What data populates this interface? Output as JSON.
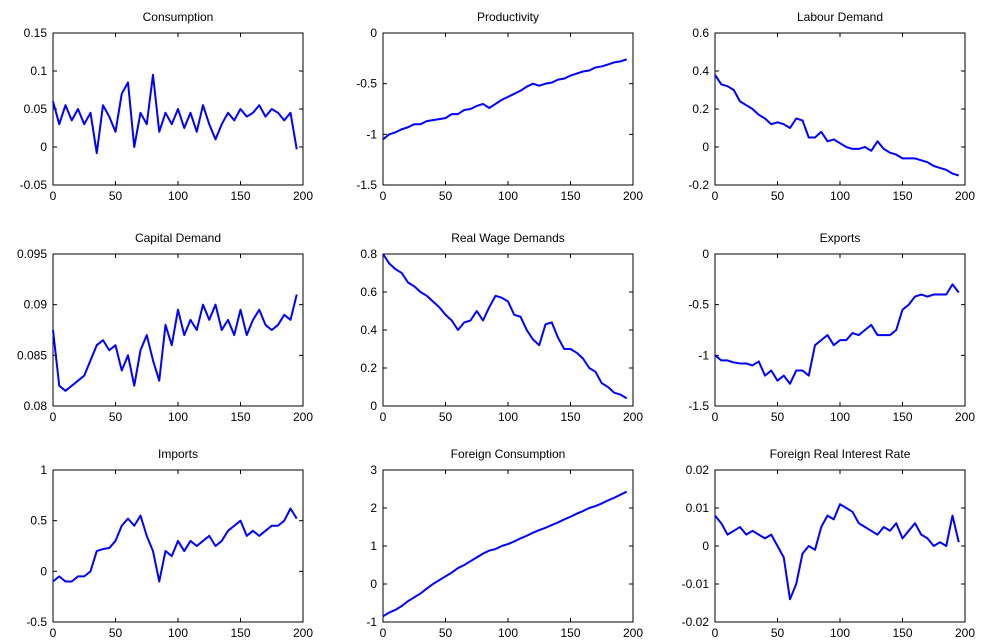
{
  "chart_data": [
    {
      "type": "line",
      "title": "Consumption",
      "color": "#0000ff",
      "x": [
        0,
        5,
        10,
        15,
        20,
        25,
        30,
        35,
        40,
        45,
        50,
        55,
        60,
        65,
        70,
        75,
        80,
        85,
        90,
        95,
        100,
        105,
        110,
        115,
        120,
        125,
        130,
        135,
        140,
        145,
        150,
        155,
        160,
        165,
        170,
        175,
        180,
        185,
        190,
        195
      ],
      "values": [
        0.06,
        0.03,
        0.055,
        0.035,
        0.05,
        0.03,
        0.045,
        -0.008,
        0.055,
        0.04,
        0.02,
        0.07,
        0.085,
        0.0,
        0.045,
        0.03,
        0.095,
        0.02,
        0.045,
        0.03,
        0.05,
        0.025,
        0.045,
        0.02,
        0.055,
        0.03,
        0.01,
        0.03,
        0.045,
        0.035,
        0.05,
        0.04,
        0.045,
        0.055,
        0.04,
        0.05,
        0.045,
        0.035,
        0.045,
        -0.003
      ],
      "xlim": [
        0,
        200
      ],
      "xticks": [
        0,
        50,
        100,
        150,
        200
      ],
      "ylim": [
        -0.05,
        0.15
      ],
      "yticks": [
        -0.05,
        0,
        0.05,
        0.1,
        0.15
      ]
    },
    {
      "type": "line",
      "title": "Productivity",
      "color": "#0000ff",
      "x": [
        0,
        5,
        10,
        15,
        20,
        25,
        30,
        35,
        40,
        45,
        50,
        55,
        60,
        65,
        70,
        75,
        80,
        85,
        90,
        95,
        100,
        105,
        110,
        115,
        120,
        125,
        130,
        135,
        140,
        145,
        150,
        155,
        160,
        165,
        170,
        175,
        180,
        185,
        190,
        195
      ],
      "values": [
        -1.05,
        -1.0,
        -0.98,
        -0.95,
        -0.93,
        -0.9,
        -0.9,
        -0.87,
        -0.86,
        -0.85,
        -0.84,
        -0.8,
        -0.8,
        -0.76,
        -0.75,
        -0.72,
        -0.7,
        -0.74,
        -0.7,
        -0.66,
        -0.63,
        -0.6,
        -0.57,
        -0.53,
        -0.5,
        -0.52,
        -0.5,
        -0.49,
        -0.46,
        -0.45,
        -0.42,
        -0.4,
        -0.38,
        -0.37,
        -0.34,
        -0.33,
        -0.31,
        -0.29,
        -0.28,
        -0.26
      ],
      "xlim": [
        0,
        200
      ],
      "xticks": [
        0,
        50,
        100,
        150,
        200
      ],
      "ylim": [
        -1.5,
        0
      ],
      "yticks": [
        -1.5,
        -1,
        -0.5,
        0
      ]
    },
    {
      "type": "line",
      "title": "Labour Demand",
      "color": "#0000ff",
      "x": [
        0,
        5,
        10,
        15,
        20,
        25,
        30,
        35,
        40,
        45,
        50,
        55,
        60,
        65,
        70,
        75,
        80,
        85,
        90,
        95,
        100,
        105,
        110,
        115,
        120,
        125,
        130,
        135,
        140,
        145,
        150,
        155,
        160,
        165,
        170,
        175,
        180,
        185,
        190,
        195
      ],
      "values": [
        0.38,
        0.33,
        0.32,
        0.3,
        0.24,
        0.22,
        0.2,
        0.17,
        0.15,
        0.12,
        0.13,
        0.12,
        0.1,
        0.15,
        0.14,
        0.05,
        0.05,
        0.08,
        0.03,
        0.04,
        0.02,
        0.0,
        -0.01,
        -0.01,
        0.0,
        -0.02,
        0.03,
        -0.01,
        -0.03,
        -0.04,
        -0.06,
        -0.06,
        -0.06,
        -0.07,
        -0.08,
        -0.1,
        -0.11,
        -0.12,
        -0.14,
        -0.15
      ],
      "xlim": [
        0,
        200
      ],
      "xticks": [
        0,
        50,
        100,
        150,
        200
      ],
      "ylim": [
        -0.2,
        0.6
      ],
      "yticks": [
        -0.2,
        0,
        0.2,
        0.4,
        0.6
      ]
    },
    {
      "type": "line",
      "title": "Capital Demand",
      "color": "#0000ff",
      "x": [
        0,
        5,
        10,
        15,
        20,
        25,
        30,
        35,
        40,
        45,
        50,
        55,
        60,
        65,
        70,
        75,
        80,
        85,
        90,
        95,
        100,
        105,
        110,
        115,
        120,
        125,
        130,
        135,
        140,
        145,
        150,
        155,
        160,
        165,
        170,
        175,
        180,
        185,
        190,
        195
      ],
      "values": [
        0.0875,
        0.082,
        0.0815,
        0.082,
        0.0825,
        0.083,
        0.0845,
        0.086,
        0.0865,
        0.0855,
        0.086,
        0.0835,
        0.085,
        0.082,
        0.0855,
        0.087,
        0.0845,
        0.0825,
        0.088,
        0.086,
        0.0895,
        0.087,
        0.0885,
        0.0875,
        0.09,
        0.0885,
        0.09,
        0.0875,
        0.0885,
        0.087,
        0.0895,
        0.087,
        0.0885,
        0.0895,
        0.088,
        0.0875,
        0.088,
        0.089,
        0.0885,
        0.091
      ],
      "xlim": [
        0,
        200
      ],
      "xticks": [
        0,
        50,
        100,
        150,
        200
      ],
      "ylim": [
        0.08,
        0.095
      ],
      "yticks": [
        0.08,
        0.085,
        0.09,
        0.095
      ]
    },
    {
      "type": "line",
      "title": "Real Wage Demands",
      "color": "#0000ff",
      "x": [
        0,
        5,
        10,
        15,
        20,
        25,
        30,
        35,
        40,
        45,
        50,
        55,
        60,
        65,
        70,
        75,
        80,
        85,
        90,
        95,
        100,
        105,
        110,
        115,
        120,
        125,
        130,
        135,
        140,
        145,
        150,
        155,
        160,
        165,
        170,
        175,
        180,
        185,
        190,
        195
      ],
      "values": [
        0.8,
        0.75,
        0.72,
        0.7,
        0.65,
        0.63,
        0.6,
        0.58,
        0.55,
        0.52,
        0.48,
        0.45,
        0.4,
        0.44,
        0.45,
        0.5,
        0.45,
        0.52,
        0.58,
        0.57,
        0.55,
        0.48,
        0.47,
        0.4,
        0.35,
        0.32,
        0.43,
        0.44,
        0.36,
        0.3,
        0.3,
        0.28,
        0.25,
        0.2,
        0.18,
        0.12,
        0.1,
        0.07,
        0.06,
        0.04
      ],
      "xlim": [
        0,
        200
      ],
      "xticks": [
        0,
        50,
        100,
        150,
        200
      ],
      "ylim": [
        0,
        0.8
      ],
      "yticks": [
        0,
        0.2,
        0.4,
        0.6,
        0.8
      ]
    },
    {
      "type": "line",
      "title": "Exports",
      "color": "#0000ff",
      "x": [
        0,
        5,
        10,
        15,
        20,
        25,
        30,
        35,
        40,
        45,
        50,
        55,
        60,
        65,
        70,
        75,
        80,
        85,
        90,
        95,
        100,
        105,
        110,
        115,
        120,
        125,
        130,
        135,
        140,
        145,
        150,
        155,
        160,
        165,
        170,
        175,
        180,
        185,
        190,
        195
      ],
      "values": [
        -1.0,
        -1.05,
        -1.05,
        -1.07,
        -1.08,
        -1.08,
        -1.1,
        -1.06,
        -1.2,
        -1.15,
        -1.25,
        -1.2,
        -1.28,
        -1.15,
        -1.15,
        -1.2,
        -0.9,
        -0.85,
        -0.8,
        -0.9,
        -0.85,
        -0.85,
        -0.78,
        -0.8,
        -0.75,
        -0.7,
        -0.8,
        -0.8,
        -0.8,
        -0.75,
        -0.55,
        -0.5,
        -0.42,
        -0.4,
        -0.42,
        -0.4,
        -0.4,
        -0.4,
        -0.3,
        -0.38
      ],
      "xlim": [
        0,
        200
      ],
      "xticks": [
        0,
        50,
        100,
        150,
        200
      ],
      "ylim": [
        -1.5,
        0
      ],
      "yticks": [
        -1.5,
        -1,
        -0.5,
        0
      ]
    },
    {
      "type": "line",
      "title": "Imports",
      "color": "#0000ff",
      "x": [
        0,
        5,
        10,
        15,
        20,
        25,
        30,
        35,
        40,
        45,
        50,
        55,
        60,
        65,
        70,
        75,
        80,
        85,
        90,
        95,
        100,
        105,
        110,
        115,
        120,
        125,
        130,
        135,
        140,
        145,
        150,
        155,
        160,
        165,
        170,
        175,
        180,
        185,
        190,
        195
      ],
      "values": [
        -0.1,
        -0.05,
        -0.1,
        -0.1,
        -0.05,
        -0.05,
        0.0,
        0.2,
        0.22,
        0.23,
        0.3,
        0.45,
        0.52,
        0.45,
        0.55,
        0.35,
        0.2,
        -0.1,
        0.2,
        0.15,
        0.3,
        0.2,
        0.3,
        0.25,
        0.3,
        0.35,
        0.25,
        0.3,
        0.4,
        0.45,
        0.5,
        0.35,
        0.4,
        0.35,
        0.4,
        0.45,
        0.45,
        0.5,
        0.62,
        0.52
      ],
      "xlim": [
        0,
        200
      ],
      "xticks": [
        0,
        50,
        100,
        150,
        200
      ],
      "ylim": [
        -0.5,
        1
      ],
      "yticks": [
        -0.5,
        0,
        0.5,
        1
      ]
    },
    {
      "type": "line",
      "title": "Foreign Consumption",
      "color": "#0000ff",
      "x": [
        0,
        5,
        10,
        15,
        20,
        25,
        30,
        35,
        40,
        45,
        50,
        55,
        60,
        65,
        70,
        75,
        80,
        85,
        90,
        95,
        100,
        105,
        110,
        115,
        120,
        125,
        130,
        135,
        140,
        145,
        150,
        155,
        160,
        165,
        170,
        175,
        180,
        185,
        190,
        195
      ],
      "values": [
        -0.85,
        -0.75,
        -0.68,
        -0.58,
        -0.45,
        -0.35,
        -0.25,
        -0.12,
        0.0,
        0.1,
        0.2,
        0.3,
        0.42,
        0.5,
        0.6,
        0.7,
        0.8,
        0.88,
        0.92,
        1.0,
        1.05,
        1.12,
        1.2,
        1.27,
        1.35,
        1.42,
        1.48,
        1.55,
        1.62,
        1.7,
        1.77,
        1.85,
        1.92,
        2.0,
        2.05,
        2.12,
        2.2,
        2.27,
        2.35,
        2.43
      ],
      "xlim": [
        0,
        200
      ],
      "xticks": [
        0,
        50,
        100,
        150,
        200
      ],
      "ylim": [
        -1,
        3
      ],
      "yticks": [
        -1,
        0,
        1,
        2,
        3
      ]
    },
    {
      "type": "line",
      "title": "Foreign Real Interest Rate",
      "color": "#0000ff",
      "x": [
        0,
        5,
        10,
        15,
        20,
        25,
        30,
        35,
        40,
        45,
        50,
        55,
        60,
        65,
        70,
        75,
        80,
        85,
        90,
        95,
        100,
        105,
        110,
        115,
        120,
        125,
        130,
        135,
        140,
        145,
        150,
        155,
        160,
        165,
        170,
        175,
        180,
        185,
        190,
        195
      ],
      "values": [
        0.008,
        0.006,
        0.003,
        0.004,
        0.005,
        0.003,
        0.004,
        0.003,
        0.002,
        0.003,
        0.0,
        -0.003,
        -0.014,
        -0.01,
        -0.002,
        0.0,
        -0.001,
        0.005,
        0.008,
        0.007,
        0.011,
        0.01,
        0.009,
        0.006,
        0.005,
        0.004,
        0.003,
        0.005,
        0.004,
        0.006,
        0.002,
        0.004,
        0.006,
        0.003,
        0.002,
        0.0,
        0.001,
        0.0,
        0.008,
        0.001
      ],
      "xlim": [
        0,
        200
      ],
      "xticks": [
        0,
        50,
        100,
        150,
        200
      ],
      "ylim": [
        -0.02,
        0.02
      ],
      "yticks": [
        -0.02,
        -0.01,
        0,
        0.01,
        0.02
      ]
    }
  ]
}
